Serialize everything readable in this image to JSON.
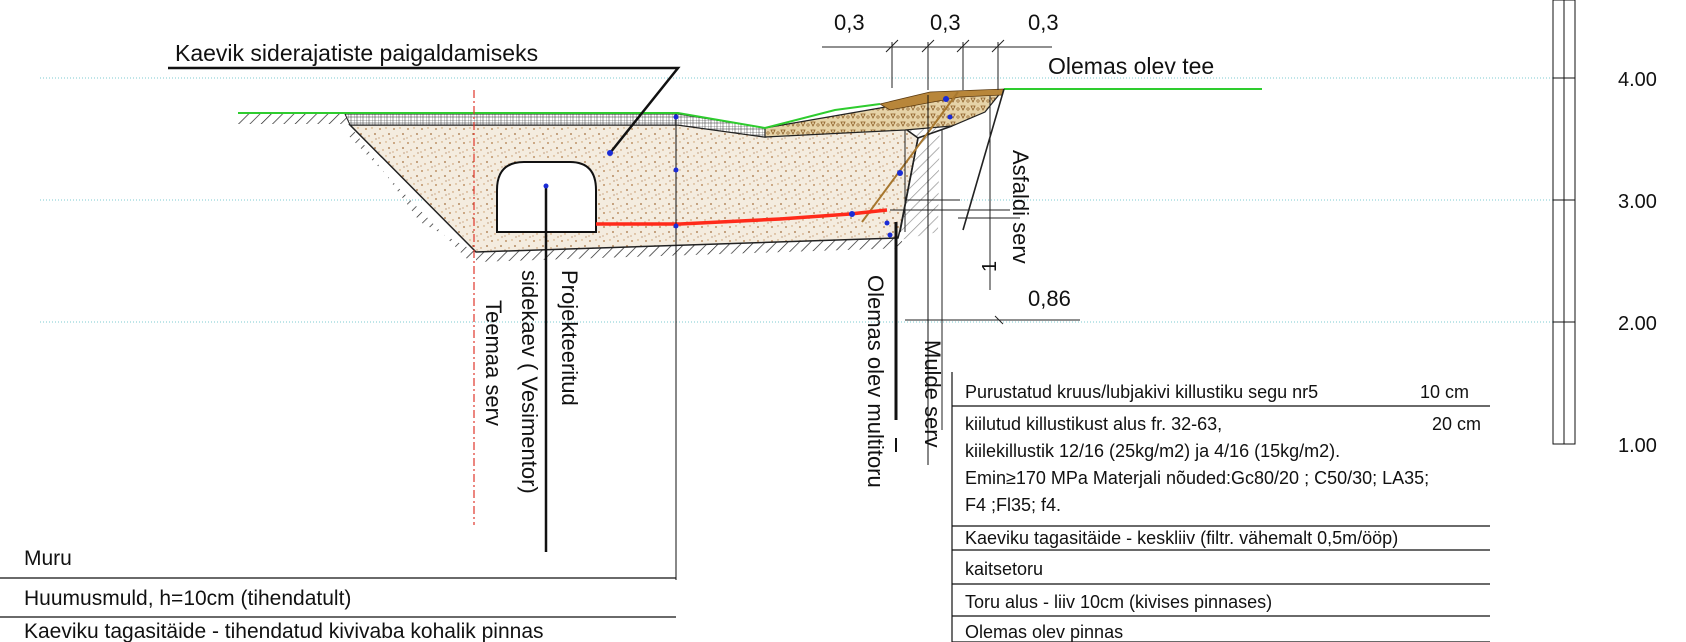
{
  "title_label": "Kaevik siderajatiste paigaldamiseks",
  "existing_road_label": "Olemas olev tee",
  "dimensions": {
    "top_widths": [
      "0,3",
      "0,3",
      "0,3"
    ],
    "offset": "0,86",
    "slope": "1"
  },
  "vertical_labels": {
    "asphalt_edge": "Asfaldi serv",
    "existing_multiduct": "Olemas olev multitoru",
    "embankment_edge": "Mulde serv",
    "projected_duct_1": "Projekteeritud",
    "projected_duct_2": "sidekaev ( Vesimentor)",
    "road_land_edge": "Teemaa serv"
  },
  "elevation_scale": [
    "4.00",
    "3.00",
    "2.00",
    "1.00"
  ],
  "legend_left": [
    "Muru",
    "Huumusmuld, h=10cm (tihendatult)",
    "Kaeviku tagasitäide - tihendatud kivivaba kohalik pinnas"
  ],
  "legend_right": {
    "item1": "Purustatud kruus/lubjakivi killustiku segu nr5",
    "item1_thickness": "10 cm",
    "item2_line1": "kiilutud killustikust alus fr. 32-63,",
    "item2_thickness": "20 cm",
    "item2_line2": "kiilekillustik 12/16  (25kg/m2) ja 4/16  (15kg/m2).",
    "item2_line3": "Emin≥170 MPa Materjali nõuded:Gc80/20 ; C50/30; LA35;",
    "item2_line4": "F4 ;Fl35; f4.",
    "item3": "Kaeviku tagasitäide - keskliiv (filtr. vähemalt 0,5m/ööp)",
    "item4": "kaitsetoru",
    "item5": "Toru alus - liiv 10cm (kivises pinnases)",
    "item6": "Olemas olev pinnas"
  },
  "colors": {
    "grass": "#2ecc2e",
    "cable": "#ff2a1a",
    "guide": "#7ecbd0",
    "edge": "#e0362b",
    "fill": "#f3ece0",
    "asphalt": "#b8863a"
  }
}
